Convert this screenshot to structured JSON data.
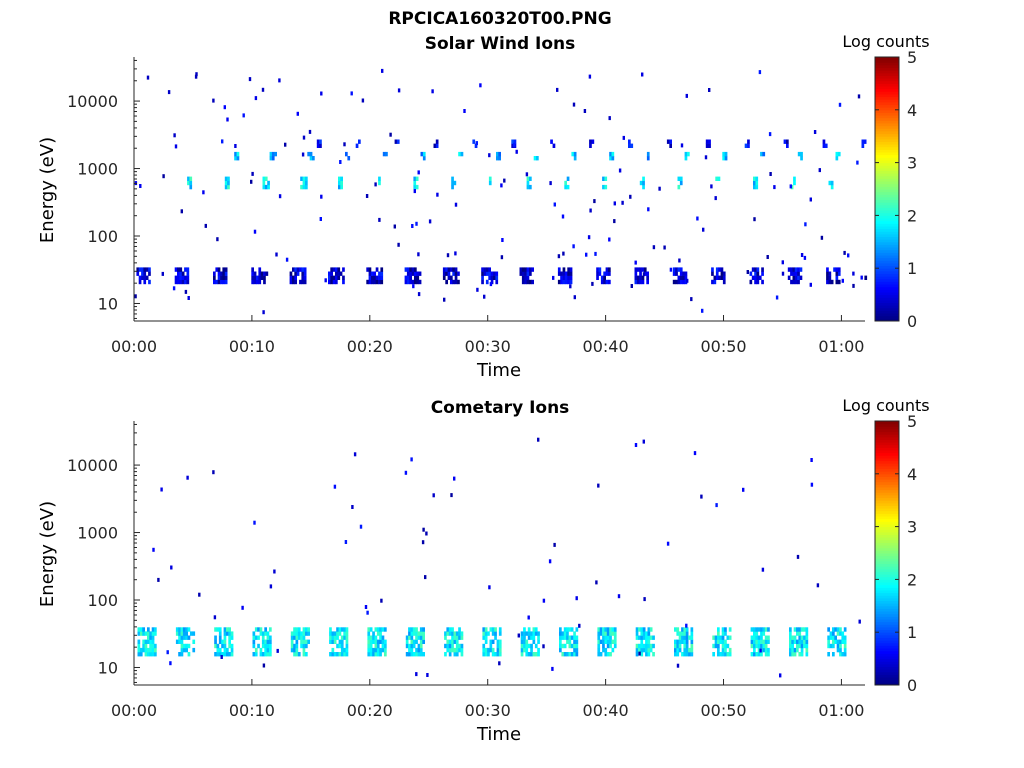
{
  "figure": {
    "filename": "RPCICA160320T00.PNG",
    "colorbar_label": "Log counts",
    "colorbar_ticks": [
      "0",
      "1",
      "2",
      "3",
      "4",
      "5"
    ]
  },
  "chart_data": [
    {
      "type": "heatmap",
      "title": "Solar Wind Ions",
      "xlabel": "Time",
      "ylabel": "Energy (eV)",
      "x_range": [
        "00:00",
        "01:02"
      ],
      "y_scale": "log",
      "y_range": [
        5.5,
        45000
      ],
      "x_ticks": [
        "00:00",
        "00:10",
        "00:20",
        "00:30",
        "00:40",
        "00:50",
        "01:00"
      ],
      "y_ticks": [
        "10",
        "100",
        "1000",
        "10000"
      ],
      "color_scale": {
        "label": "Log counts",
        "min": 0,
        "max": 5
      },
      "clusters": [
        {
          "energy_min": 20,
          "energy_max": 34,
          "value": 0.4,
          "start_min": 0.2,
          "period_min": 3.25,
          "width_min": 1.2
        },
        {
          "energy_min": 480,
          "energy_max": 780,
          "value": 1.8,
          "start_min": 4.5,
          "period_min": 3.2,
          "width_min": 0.4
        },
        {
          "energy_min": 1300,
          "energy_max": 1700,
          "value": 1.5,
          "start_min": 8.3,
          "period_min": 3.2,
          "width_min": 0.4
        },
        {
          "energy_min": 1900,
          "energy_max": 2600,
          "value": 0.6,
          "start_min": 15.5,
          "period_min": 3.3,
          "width_min": 0.3
        }
      ]
    },
    {
      "type": "heatmap",
      "title": "Cometary Ions",
      "xlabel": "Time",
      "ylabel": "Energy (eV)",
      "x_range": [
        "00:00",
        "01:02"
      ],
      "y_scale": "log",
      "y_range": [
        5.5,
        45000
      ],
      "x_ticks": [
        "00:00",
        "00:10",
        "00:20",
        "00:30",
        "00:40",
        "00:50",
        "01:00"
      ],
      "y_ticks": [
        "10",
        "100",
        "1000",
        "10000"
      ],
      "color_scale": {
        "label": "Log counts",
        "min": 0,
        "max": 5
      },
      "clusters": [
        {
          "energy_min": 15,
          "energy_max": 42,
          "value": 1.8,
          "start_min": 0.3,
          "period_min": 3.25,
          "width_min": 1.5
        }
      ]
    }
  ]
}
